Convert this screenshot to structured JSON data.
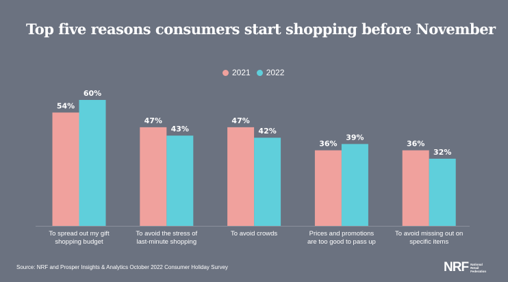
{
  "chart_data": {
    "type": "bar",
    "title": "Top five reasons consumers start shopping before November",
    "categories": [
      [
        "To spread out my gift",
        "shopping budget"
      ],
      [
        "To avoid the stress of",
        "last-minute shopping"
      ],
      [
        "To avoid crowds"
      ],
      [
        "Prices and promotions",
        "are too good to pass up"
      ],
      [
        "To avoid missing out on",
        "specific items"
      ]
    ],
    "series": [
      {
        "name": "2021",
        "color": "#f0a19d",
        "values": [
          54,
          47,
          47,
          36,
          36
        ]
      },
      {
        "name": "2022",
        "color": "#5fcfdb",
        "values": [
          60,
          43,
          42,
          39,
          32
        ]
      }
    ],
    "value_suffix": "%",
    "ylim": [
      0,
      60
    ],
    "grid": false,
    "legend": "top-center"
  },
  "source": "Source: NRF and Prosper Insights & Analytics October 2022 Consumer Holiday Survey",
  "logo": {
    "main": "NRF",
    "sub": [
      "National",
      "Retail",
      "Federation"
    ]
  }
}
